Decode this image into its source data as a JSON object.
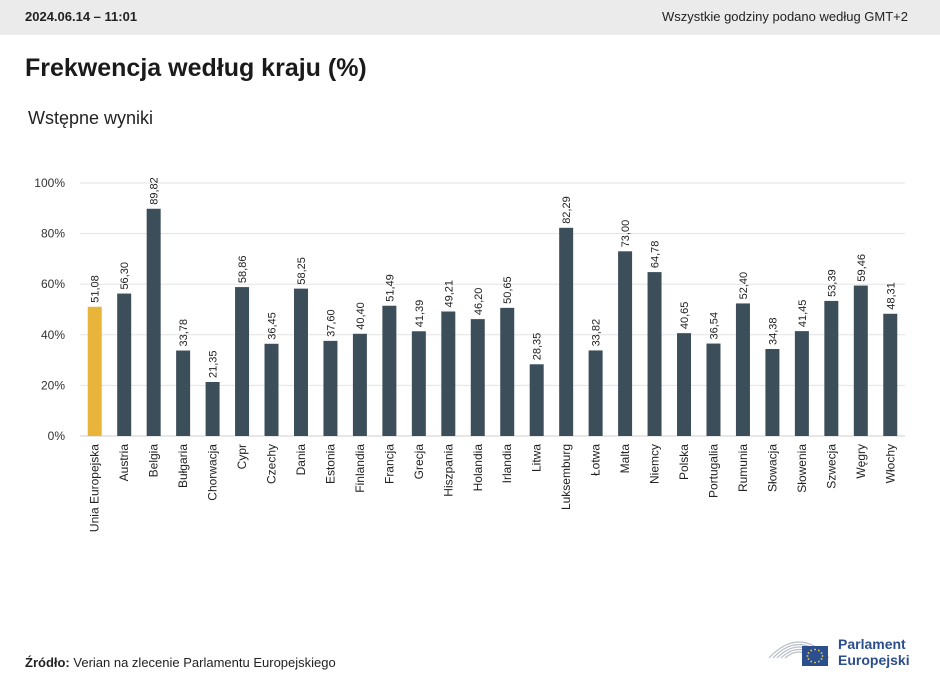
{
  "header": {
    "datetime": "2024.06.14 – 11:01",
    "timezone_note": "Wszystkie godziny podano według GMT+2"
  },
  "title": "Frekwencja według kraju (%)",
  "subtitle": "Wstępne wyniki",
  "source": {
    "label": "Źródło:",
    "text": "Verian na zlecenie Parlamentu Europejskiego"
  },
  "logo": {
    "line1": "Parlament",
    "line2": "Europejski"
  },
  "colors": {
    "highlight": "#e8b43a",
    "bar": "#3d4e5b",
    "grid": "#e3e3e3",
    "logo_blue": "#2b4f8e"
  },
  "chart_data": {
    "type": "bar",
    "title": "Frekwencja według kraju (%)",
    "subtitle": "Wstępne wyniki",
    "ylim": [
      0,
      100
    ],
    "yticks": [
      "0%",
      "20%",
      "40%",
      "60%",
      "80%",
      "100%"
    ],
    "ytick_values": [
      0,
      20,
      40,
      60,
      80,
      100
    ],
    "grid": true,
    "highlight_index": 0,
    "categories": [
      "Unia Europejska",
      "Austria",
      "Belgia",
      "Bułgaria",
      "Chorwacja",
      "Cypr",
      "Czechy",
      "Dania",
      "Estonia",
      "Finlandia",
      "Francja",
      "Grecja",
      "Hiszpania",
      "Holandia",
      "Irlandia",
      "Litwa",
      "Luksemburg",
      "Łotwa",
      "Malta",
      "Niemcy",
      "Polska",
      "Portugalia",
      "Rumunia",
      "Słowacja",
      "Słowenia",
      "Szwecja",
      "Węgry",
      "Włochy"
    ],
    "values": [
      51.08,
      56.3,
      89.82,
      33.78,
      21.35,
      58.86,
      36.45,
      58.25,
      37.6,
      40.4,
      51.49,
      41.39,
      49.21,
      46.2,
      50.65,
      28.35,
      82.29,
      33.82,
      73.0,
      64.78,
      40.65,
      36.54,
      52.4,
      34.38,
      41.45,
      53.39,
      59.46,
      48.31
    ],
    "value_labels": [
      "51,08",
      "56,30",
      "89,82",
      "33,78",
      "21,35",
      "58,86",
      "36,45",
      "58,25",
      "37,60",
      "40,40",
      "51,49",
      "41,39",
      "49,21",
      "46,20",
      "50,65",
      "28,35",
      "82,29",
      "33,82",
      "73,00",
      "64,78",
      "40,65",
      "36,54",
      "52,40",
      "34,38",
      "41,45",
      "53,39",
      "59,46",
      "48,31"
    ]
  }
}
